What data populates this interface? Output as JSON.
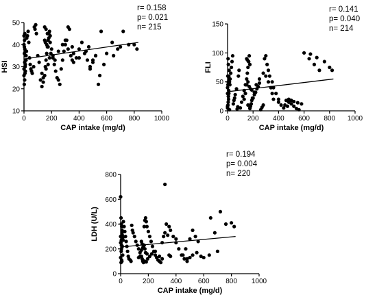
{
  "chart_data": [
    {
      "type": "scatter",
      "xlabel": "CAP intake (mg/d)",
      "ylabel": "HSI",
      "xlim": [
        0,
        1000
      ],
      "ylim": [
        10,
        50
      ],
      "xticks": [
        "0",
        "200",
        "400",
        "600",
        "800",
        "1000"
      ],
      "yticks": [
        "10",
        "20",
        "30",
        "40",
        "50"
      ],
      "stats": [
        "r= 0.158",
        "p= 0.021",
        "n= 215"
      ],
      "fit": {
        "x": [
          0,
          830
        ],
        "y": [
          33.5,
          41
        ]
      },
      "points": {
        "x": [
          0,
          3,
          5,
          8,
          10,
          0,
          5,
          2,
          12,
          6,
          4,
          15,
          0,
          7,
          9,
          3,
          20,
          25,
          30,
          35,
          40,
          45,
          50,
          55,
          60,
          70,
          75,
          80,
          85,
          90,
          100,
          110,
          120,
          130,
          140,
          150,
          155,
          160,
          165,
          170,
          175,
          180,
          185,
          190,
          200,
          210,
          220,
          230,
          240,
          250,
          260,
          270,
          280,
          290,
          300,
          310,
          320,
          330,
          350,
          360,
          380,
          400,
          420,
          440,
          460,
          480,
          500,
          520,
          540,
          560,
          600,
          640,
          680,
          720,
          760,
          800,
          820,
          150,
          160,
          170,
          180,
          190,
          140,
          130,
          160,
          175,
          185,
          195,
          210,
          225,
          250,
          280,
          300,
          320,
          340,
          350,
          360,
          400,
          450,
          470,
          480,
          500,
          520,
          550,
          580,
          650,
          700,
          150,
          155,
          165,
          175,
          10,
          12,
          15,
          18,
          0,
          6
        ],
        "y": [
          40,
          36,
          32,
          30,
          28,
          26,
          24,
          22,
          35,
          38,
          42,
          33,
          29,
          27,
          37,
          39,
          43,
          44,
          46,
          41,
          34,
          31,
          29,
          28,
          27,
          30,
          48,
          47,
          49,
          45,
          35,
          32,
          24,
          21,
          23,
          26,
          30,
          33,
          36,
          39,
          42,
          45,
          46,
          41,
          38,
          34,
          31,
          28,
          25,
          24,
          22,
          29,
          33,
          37,
          40,
          42,
          48,
          47,
          39,
          36,
          34,
          38,
          41,
          36,
          33,
          30,
          32,
          35,
          22,
          46,
          36,
          41,
          38,
          46,
          40,
          40,
          38,
          48,
          47,
          45,
          43,
          44,
          25,
          27,
          29,
          31,
          34,
          36,
          35,
          33,
          37,
          40,
          42,
          38,
          35,
          33,
          32,
          34,
          37,
          39,
          29,
          33,
          35,
          26,
          31,
          35,
          39,
          42,
          41,
          40,
          39,
          31,
          33,
          35,
          37,
          44,
          45
        ]
      }
    },
    {
      "type": "scatter",
      "xlabel": "CAP intake (mg/d)",
      "ylabel": "FLI",
      "xlim": [
        0,
        1000
      ],
      "ylim": [
        0,
        150
      ],
      "xticks": [
        "0",
        "200",
        "400",
        "600",
        "800",
        "1000"
      ],
      "yticks": [
        "0",
        "50",
        "100",
        "150"
      ],
      "stats": [
        "r= 0.141",
        "p= 0.040",
        "n= 214"
      ],
      "fit": {
        "x": [
          0,
          830
        ],
        "y": [
          33,
          55
        ]
      },
      "points": {
        "x": [
          0,
          3,
          5,
          8,
          10,
          0,
          5,
          2,
          12,
          6,
          4,
          15,
          0,
          7,
          9,
          3,
          20,
          25,
          30,
          35,
          40,
          45,
          50,
          55,
          60,
          70,
          75,
          80,
          85,
          90,
          100,
          110,
          120,
          130,
          140,
          150,
          155,
          160,
          165,
          170,
          175,
          180,
          185,
          190,
          200,
          210,
          220,
          230,
          240,
          250,
          260,
          270,
          280,
          290,
          300,
          310,
          320,
          330,
          350,
          360,
          380,
          400,
          420,
          440,
          460,
          480,
          500,
          520,
          540,
          560,
          600,
          640,
          680,
          720,
          760,
          800,
          820,
          150,
          160,
          170,
          180,
          190,
          140,
          130,
          160,
          175,
          185,
          195,
          210,
          225,
          250,
          280,
          300,
          320,
          340,
          350,
          360,
          400,
          450,
          470,
          480,
          500,
          520,
          550,
          580,
          650,
          700,
          150,
          155,
          165,
          175,
          10,
          12,
          15,
          18,
          0,
          6
        ],
        "y": [
          5,
          10,
          15,
          20,
          30,
          40,
          50,
          60,
          70,
          80,
          90,
          2,
          8,
          25,
          35,
          45,
          55,
          65,
          75,
          85,
          95,
          12,
          18,
          22,
          28,
          38,
          3,
          7,
          60,
          70,
          5,
          15,
          25,
          35,
          45,
          55,
          65,
          75,
          85,
          95,
          4,
          8,
          12,
          18,
          22,
          28,
          32,
          38,
          42,
          48,
          2,
          6,
          10,
          90,
          95,
          80,
          70,
          60,
          50,
          40,
          30,
          20,
          10,
          5,
          18,
          15,
          12,
          8,
          4,
          2,
          100,
          90,
          80,
          70,
          85,
          75,
          70,
          45,
          50,
          42,
          38,
          36,
          30,
          20,
          10,
          5,
          12,
          22,
          32,
          45,
          55,
          65,
          60,
          50,
          40,
          30,
          20,
          15,
          10,
          8,
          20,
          18,
          16,
          14,
          12,
          98,
          92,
          90,
          88,
          85,
          80,
          60,
          55,
          50,
          45,
          30,
          25
        ]
      }
    },
    {
      "type": "scatter",
      "xlabel": "CAP intake (mg/d)",
      "ylabel": "LDH (U/L)",
      "xlim": [
        0,
        1000
      ],
      "ylim": [
        0,
        800
      ],
      "xticks": [
        "0",
        "200",
        "400",
        "600",
        "800",
        "1000"
      ],
      "yticks": [
        "0",
        "200",
        "400",
        "600",
        "800"
      ],
      "stats": [
        "r= 0.194",
        "p= 0.004",
        "n= 220"
      ],
      "fit": {
        "x": [
          0,
          830
        ],
        "y": [
          215,
          300
        ]
      },
      "points": {
        "x": [
          0,
          3,
          5,
          8,
          10,
          0,
          5,
          2,
          12,
          6,
          4,
          15,
          0,
          7,
          9,
          3,
          20,
          25,
          30,
          35,
          40,
          45,
          50,
          55,
          60,
          70,
          75,
          80,
          85,
          90,
          100,
          110,
          120,
          130,
          140,
          150,
          155,
          160,
          165,
          170,
          175,
          180,
          185,
          190,
          200,
          210,
          220,
          230,
          240,
          250,
          260,
          270,
          280,
          290,
          300,
          310,
          320,
          330,
          350,
          360,
          380,
          400,
          420,
          440,
          460,
          480,
          500,
          520,
          540,
          560,
          600,
          640,
          680,
          720,
          760,
          800,
          820,
          150,
          160,
          170,
          180,
          190,
          140,
          130,
          160,
          175,
          185,
          195,
          210,
          225,
          250,
          280,
          300,
          320,
          340,
          350,
          360,
          400,
          450,
          470,
          480,
          500,
          520,
          550,
          580,
          650,
          700,
          150,
          155,
          165,
          175,
          10,
          12,
          15,
          18,
          0,
          6
        ],
        "y": [
          620,
          450,
          400,
          380,
          350,
          300,
          270,
          250,
          220,
          200,
          180,
          150,
          130,
          110,
          100,
          90,
          420,
          380,
          340,
          300,
          260,
          220,
          180,
          140,
          120,
          110,
          100,
          390,
          350,
          330,
          300,
          260,
          230,
          200,
          170,
          140,
          120,
          100,
          90,
          380,
          430,
          450,
          420,
          380,
          340,
          300,
          260,
          220,
          180,
          150,
          130,
          110,
          100,
          90,
          250,
          300,
          720,
          400,
          380,
          350,
          300,
          250,
          200,
          150,
          120,
          100,
          280,
          350,
          300,
          260,
          130,
          150,
          330,
          500,
          400,
          410,
          380,
          190,
          210,
          230,
          170,
          160,
          140,
          130,
          110,
          100,
          95,
          120,
          140,
          160,
          180,
          140,
          120,
          330,
          310,
          150,
          140,
          280,
          150,
          200,
          120,
          130,
          150,
          170,
          140,
          450,
          180,
          260,
          240,
          220,
          200,
          330,
          310,
          290,
          270,
          250,
          230
        ]
      }
    }
  ]
}
